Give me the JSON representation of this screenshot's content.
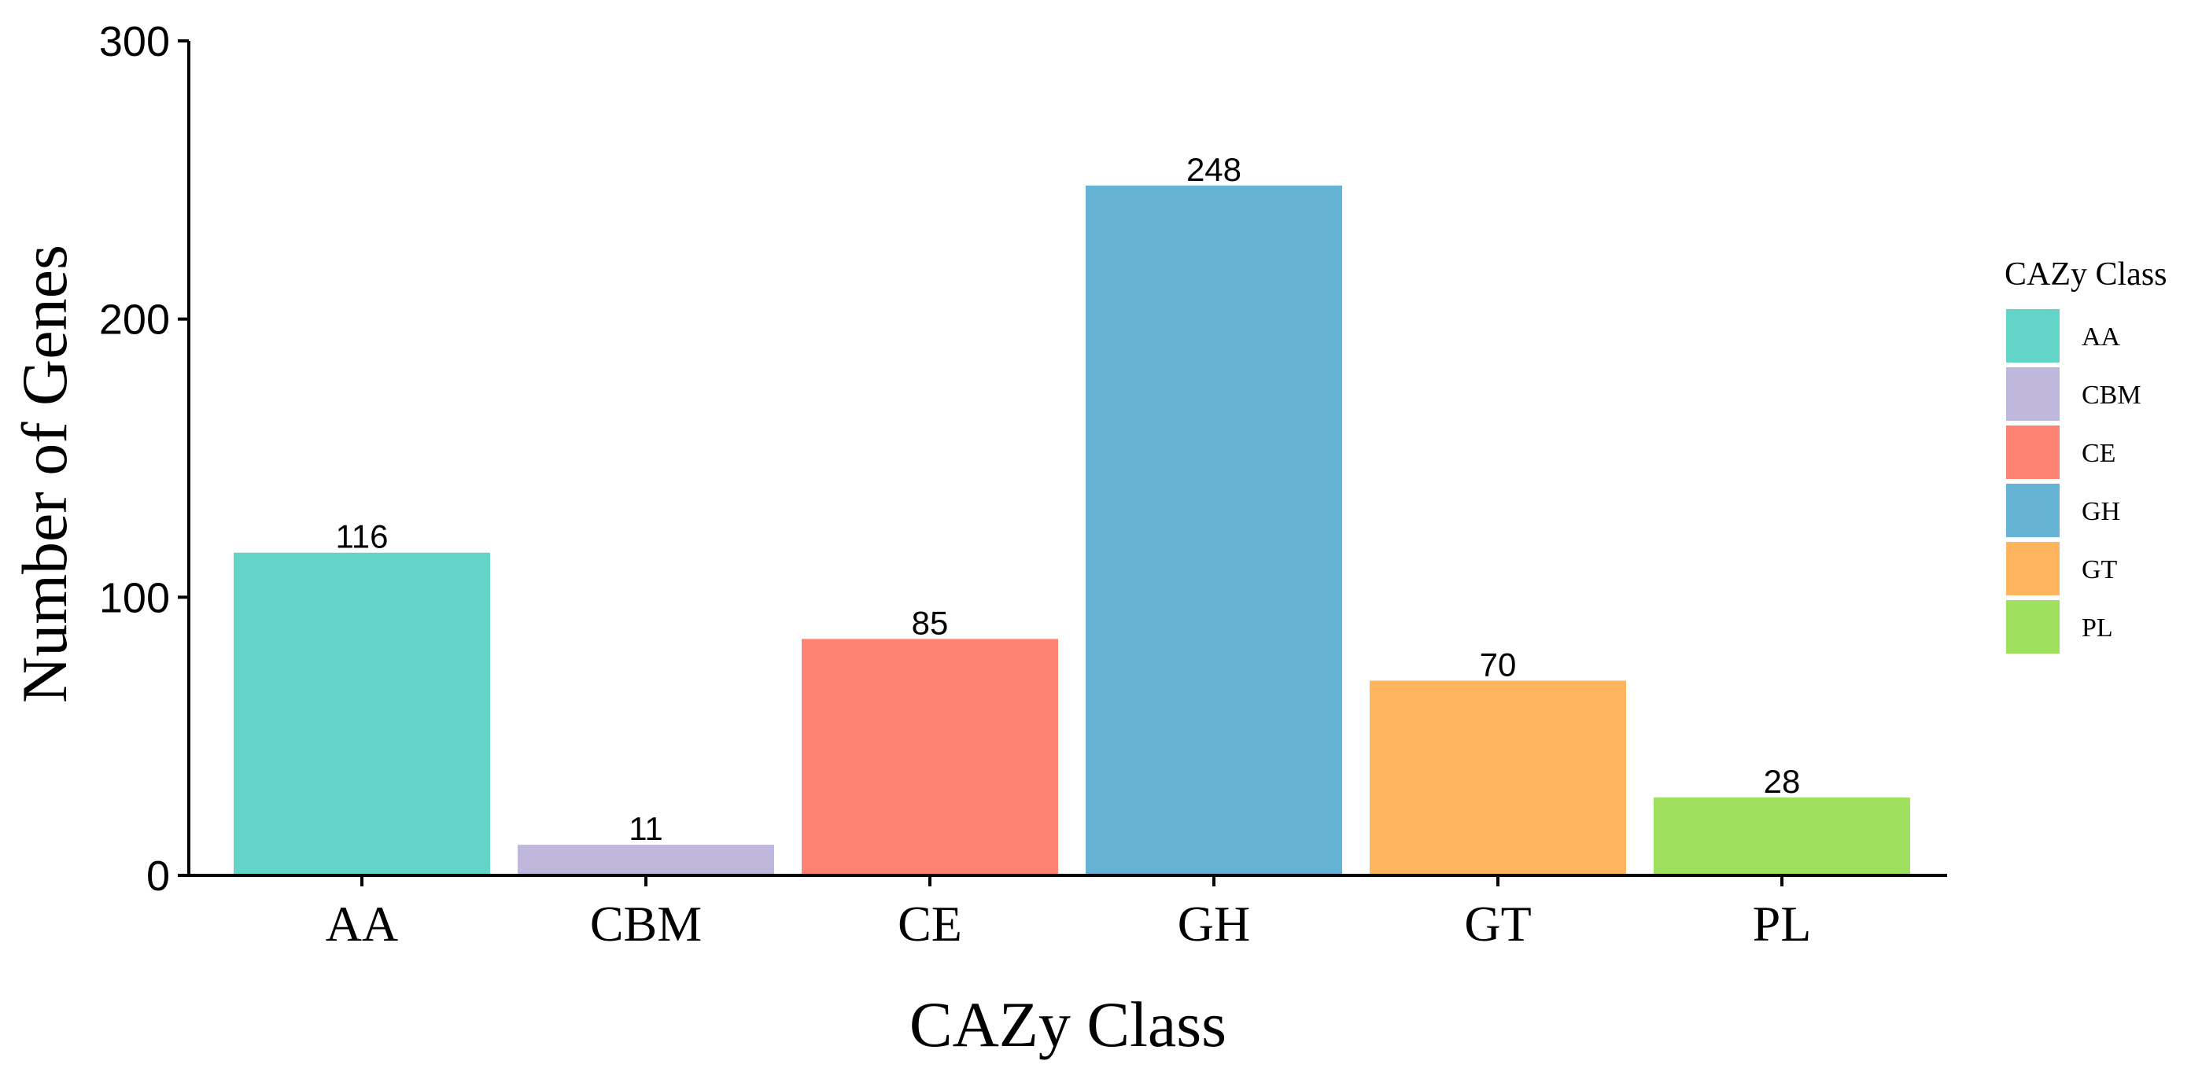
{
  "chart_data": {
    "type": "bar",
    "categories": [
      "AA",
      "CBM",
      "CE",
      "GH",
      "GT",
      "PL"
    ],
    "values": [
      116,
      11,
      85,
      248,
      70,
      28
    ],
    "data_labels": [
      "116",
      "11",
      "85",
      "248",
      "70",
      "28"
    ],
    "colors": [
      "#63d4c8",
      "#c0b8dc",
      "#ff8273",
      "#65b2d4",
      "#ffb45e",
      "#9fe05f"
    ],
    "title": "",
    "xlabel": "CAZy Class",
    "ylabel": "Number of Genes",
    "ylim": [
      0,
      300
    ],
    "yticks": [
      0,
      100,
      200,
      300
    ],
    "ytick_labels": [
      "0",
      "100",
      "200",
      "300"
    ],
    "grid": false,
    "legend": {
      "title": "CAZy Class",
      "placement": "right",
      "entries": [
        "AA",
        "CBM",
        "CE",
        "GH",
        "GT",
        "PL"
      ]
    }
  }
}
